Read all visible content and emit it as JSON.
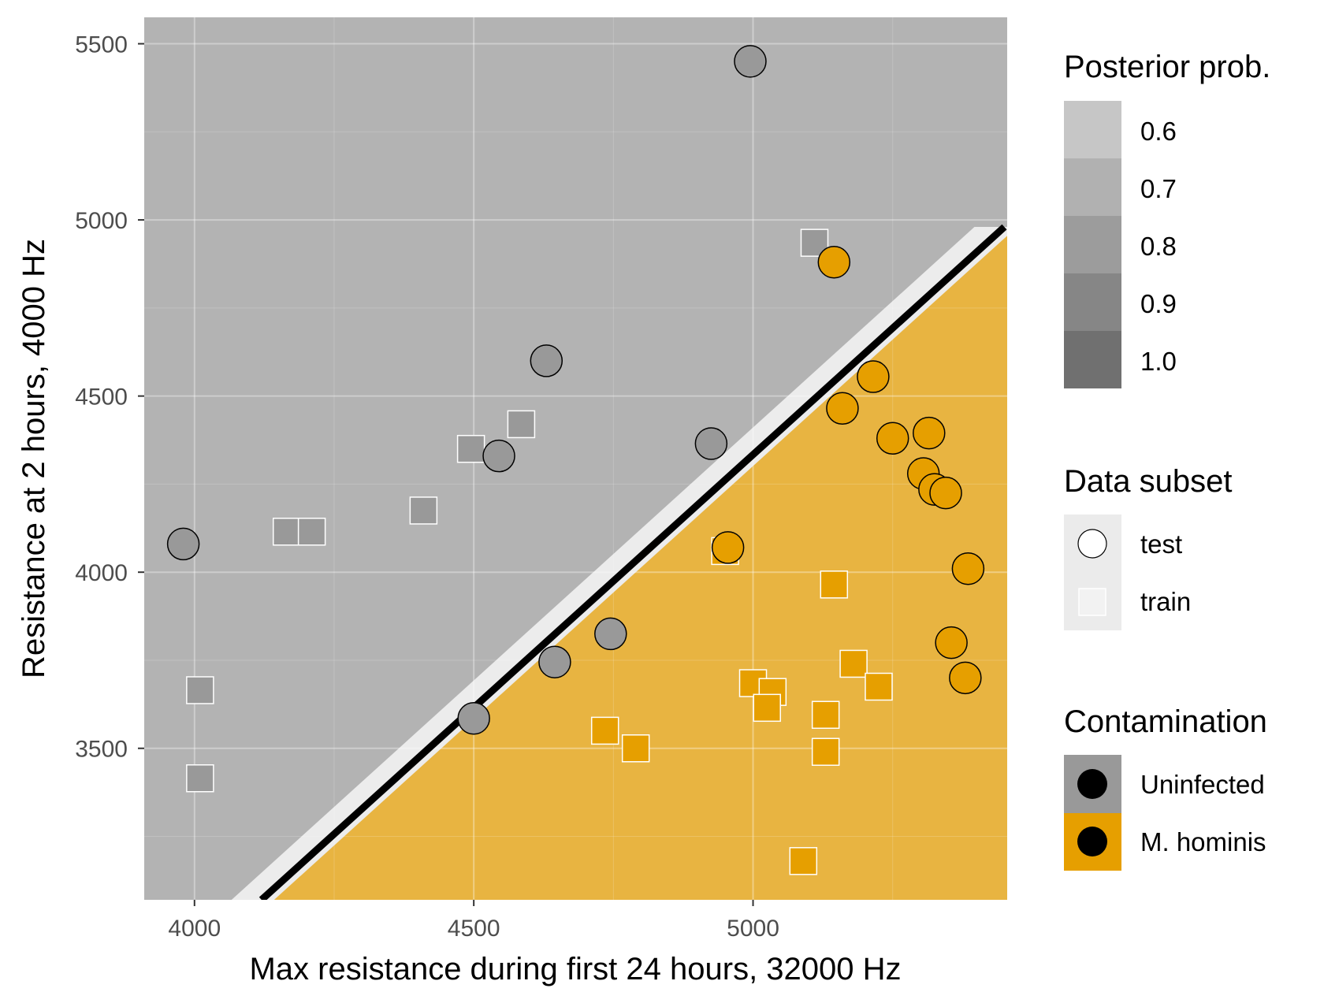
{
  "chart_data": {
    "type": "scatter",
    "xlabel": "Max resistance during first 24 hours, 32000 Hz",
    "ylabel": "Resistance at 2 hours, 4000 Hz",
    "xlim": [
      3910,
      5455
    ],
    "ylim": [
      3070,
      5575
    ],
    "x_ticks": [
      "4000",
      "4500",
      "5000"
    ],
    "y_ticks": [
      "3500",
      "4000",
      "4500",
      "5000",
      "5500"
    ],
    "decision_boundary": {
      "from": [
        4120,
        3070
      ],
      "to": [
        5450,
        4980
      ]
    },
    "region_colors": {
      "uninfected": "#b3b3b3",
      "m_hominis": "#e8b441",
      "boundary_blend": "#ececec"
    },
    "series": [
      {
        "name": "test",
        "group": "Uninfected",
        "shape": "circle",
        "color": "#999999",
        "points": [
          [
            4995,
            5450
          ],
          [
            3980,
            4080
          ],
          [
            4630,
            4600
          ],
          [
            4545,
            4330
          ],
          [
            4925,
            4365
          ],
          [
            4745,
            3825
          ],
          [
            4645,
            3745
          ],
          [
            4500,
            3585
          ]
        ]
      },
      {
        "name": "test",
        "group": "M. hominis",
        "shape": "circle",
        "color": "#e69f00",
        "points": [
          [
            5145,
            4880
          ],
          [
            5215,
            4555
          ],
          [
            5160,
            4465
          ],
          [
            5250,
            4380
          ],
          [
            5315,
            4395
          ],
          [
            5305,
            4280
          ],
          [
            5325,
            4235
          ],
          [
            5345,
            4225
          ],
          [
            4955,
            4070
          ],
          [
            5385,
            4010
          ],
          [
            5355,
            3800
          ],
          [
            5380,
            3700
          ]
        ]
      },
      {
        "name": "train",
        "group": "Uninfected",
        "shape": "square",
        "color": "#999999",
        "points": [
          [
            5110,
            4935
          ],
          [
            4585,
            4420
          ],
          [
            4495,
            4350
          ],
          [
            4410,
            4175
          ],
          [
            4165,
            4115
          ],
          [
            4210,
            4115
          ],
          [
            4010,
            3665
          ],
          [
            4010,
            3415
          ]
        ]
      },
      {
        "name": "train",
        "group": "M. hominis",
        "shape": "square",
        "color": "#e69f00",
        "points": [
          [
            4950,
            4060
          ],
          [
            5145,
            3965
          ],
          [
            5180,
            3740
          ],
          [
            5225,
            3675
          ],
          [
            5000,
            3685
          ],
          [
            5035,
            3660
          ],
          [
            5025,
            3615
          ],
          [
            5130,
            3595
          ],
          [
            4735,
            3550
          ],
          [
            4790,
            3500
          ],
          [
            5130,
            3490
          ],
          [
            5090,
            3180
          ]
        ]
      }
    ],
    "legends": {
      "posterior": {
        "title": "Posterior prob.",
        "levels": [
          "0.6",
          "0.7",
          "0.8",
          "0.9",
          "1.0"
        ],
        "colors": [
          "#c6c6c6",
          "#b1b1b1",
          "#9c9c9c",
          "#868686",
          "#707070"
        ]
      },
      "subset": {
        "title": "Data subset",
        "items": [
          "test",
          "train"
        ]
      },
      "contamination": {
        "title": "Contamination",
        "items": [
          "Uninfected",
          "M. hominis"
        ],
        "colors": [
          "#999999",
          "#e69f00"
        ]
      }
    }
  }
}
